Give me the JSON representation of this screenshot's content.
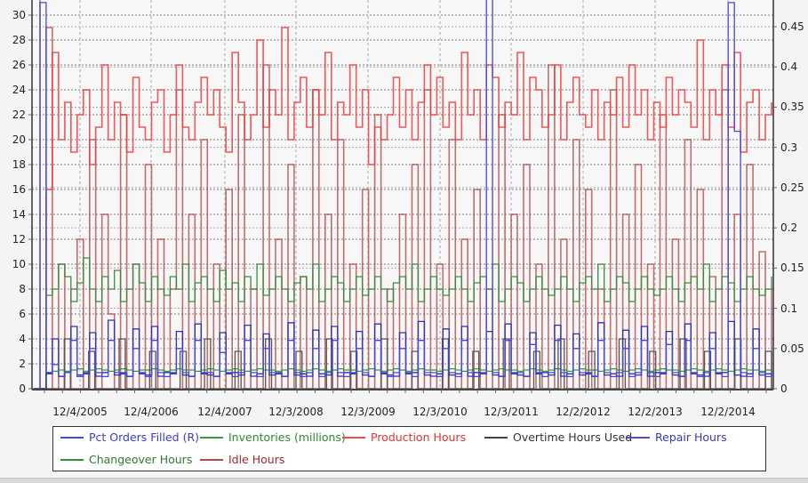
{
  "chart_data": {
    "type": "line",
    "title": "",
    "xlabel": "",
    "ylabel": "",
    "ylabel_right": "",
    "ylim": [
      0,
      31
    ],
    "ylim_right": [
      0,
      0.465
    ],
    "grid": true,
    "legend_position": "bottom",
    "left_axis_ticks": [
      "0",
      "2",
      "4",
      "6",
      "8",
      "10",
      "12",
      "14",
      "16",
      "18",
      "20",
      "22",
      "24",
      "26",
      "28",
      "30"
    ],
    "right_axis_ticks": [
      "0",
      "0.05",
      "0.1",
      "0.15",
      "0.2",
      "0.25",
      "0.3",
      "0.35",
      "0.4",
      "0.45"
    ],
    "x_tick_labels": [
      "12/4/2005",
      "12/4/2006",
      "12/4/2007",
      "12/3/2008",
      "12/3/2009",
      "12/3/2010",
      "12/3/2011",
      "12/2/2012",
      "12/2/2013",
      "12/2/2014"
    ],
    "x_range": [
      "~12/2004",
      "~7/2015"
    ],
    "series": [
      {
        "name": "Pct Orders Filled (R)",
        "axis": "right",
        "color": "#4848d8",
        "values": [
          0.0,
          0.48,
          0.02,
          0.03,
          0.015,
          0.02,
          0.06,
          0.015,
          0.02,
          0.05,
          0.02,
          0.015,
          0.06,
          0.02,
          0.02,
          0.015,
          0.05,
          0.02,
          0.015,
          0.06,
          0.02,
          0.015,
          0.02,
          0.05,
          0.02,
          0.015,
          0.06,
          0.02,
          0.02,
          0.015,
          0.045,
          0.02,
          0.015,
          0.02,
          0.06,
          0.02,
          0.015,
          0.05,
          0.02,
          0.02,
          0.015,
          0.06,
          0.02,
          0.015,
          0.02,
          0.05,
          0.015,
          0.02,
          0.06,
          0.02,
          0.015,
          0.02,
          0.05,
          0.02,
          0.015,
          0.06,
          0.02,
          0.015,
          0.02,
          0.05,
          0.02,
          0.015,
          0.06,
          0.02,
          0.02,
          0.015,
          0.05,
          0.02,
          0.015,
          0.06,
          0.02,
          0.015,
          0.02,
          0.5,
          0.02,
          0.015,
          0.06,
          0.02,
          0.02,
          0.015,
          0.055,
          0.02,
          0.015,
          0.02,
          0.06,
          0.02,
          0.015,
          0.05,
          0.02,
          0.02,
          0.015,
          0.06,
          0.02,
          0.015,
          0.02,
          0.05,
          0.015,
          0.02,
          0.06,
          0.02,
          0.015,
          0.02,
          0.055,
          0.02,
          0.015,
          0.06,
          0.02,
          0.015,
          0.02,
          0.05,
          0.02,
          0.015,
          0.48,
          0.32,
          0.02,
          0.015,
          0.05,
          0.02,
          0.015,
          0.02
        ]
      },
      {
        "name": "Inventories (millions)",
        "axis": "left",
        "color": "#3c9a3c",
        "values": [
          0,
          0,
          1.3,
          1.4,
          1.5,
          1.4,
          1.5,
          1.6,
          1.4,
          1.5,
          1.6,
          1.5,
          1.4,
          1.5,
          1.6,
          1.5,
          1.4,
          1.5,
          1.5,
          1.6,
          1.5,
          1.4,
          1.5,
          1.6,
          1.5,
          1.5,
          1.4,
          1.5,
          1.6,
          1.5,
          1.4,
          1.5,
          1.6,
          1.5,
          1.4,
          1.5,
          1.6,
          1.5,
          1.5,
          1.4,
          1.5,
          1.6,
          1.5,
          1.4,
          1.5,
          1.6,
          1.5,
          1.4,
          1.5,
          1.6,
          1.5,
          1.5,
          1.4,
          1.5,
          1.6,
          1.5,
          1.4,
          1.5,
          1.6,
          1.5,
          1.4,
          1.5,
          1.6,
          1.5,
          1.5,
          1.4,
          1.5,
          1.6,
          1.5,
          1.4,
          1.5,
          1.6,
          1.5,
          1.4,
          1.5,
          1.6,
          1.5,
          1.5,
          1.4,
          1.5,
          1.6,
          1.5,
          1.4,
          1.5,
          1.6,
          1.5,
          1.4,
          1.5,
          1.6,
          1.5,
          1.5,
          1.4,
          1.5,
          1.6,
          1.5,
          1.4,
          1.5,
          1.6,
          1.5,
          1.4,
          1.5,
          1.6,
          1.5,
          1.5,
          1.4,
          1.5,
          1.6,
          1.5,
          1.4,
          1.5,
          1.6,
          1.5,
          1.4,
          1.5,
          1.6,
          1.5,
          1.5,
          1.4,
          1.5,
          1.6
        ]
      },
      {
        "name": "Production Hours",
        "axis": "left",
        "color": "#f03c3c",
        "values": [
          0,
          0,
          16,
          27,
          20,
          23,
          19,
          22,
          24,
          18,
          21,
          26,
          20,
          23,
          22,
          19,
          25,
          21,
          20,
          23,
          24,
          19,
          22,
          26,
          21,
          20,
          23,
          25,
          22,
          24,
          21,
          19,
          27,
          23,
          20,
          22,
          28,
          21,
          24,
          22,
          29,
          20,
          23,
          25,
          21,
          24,
          22,
          27,
          20,
          23,
          22,
          26,
          21,
          24,
          18,
          21,
          20,
          22,
          25,
          21,
          24,
          20,
          23,
          26,
          22,
          25,
          21,
          23,
          20,
          27,
          22,
          24,
          20,
          26,
          25,
          21,
          23,
          22,
          27,
          20,
          25,
          24,
          21,
          22,
          26,
          20,
          23,
          25,
          22,
          21,
          24,
          20,
          23,
          22,
          25,
          21,
          26,
          22,
          24,
          20,
          23,
          21,
          25,
          22,
          24,
          23,
          21,
          28,
          20,
          24,
          22,
          26,
          21,
          27,
          19,
          23,
          24,
          20,
          22,
          23
        ]
      },
      {
        "name": "Overtime Hours Used",
        "axis": "left",
        "color": "#555555",
        "values": [
          0,
          0,
          0,
          0,
          0,
          4,
          0,
          0,
          0,
          3,
          0,
          0,
          0,
          0,
          4,
          0,
          0,
          0,
          0,
          3,
          0,
          0,
          0,
          0,
          3,
          0,
          0,
          0,
          4,
          0,
          0,
          0,
          0,
          3,
          0,
          0,
          0,
          0,
          4,
          0,
          0,
          0,
          0,
          3,
          0,
          0,
          0,
          0,
          4,
          0,
          0,
          0,
          3,
          0,
          0,
          0,
          0,
          4,
          0,
          0,
          0,
          0,
          3,
          0,
          0,
          0,
          0,
          4,
          0,
          0,
          0,
          0,
          3,
          0,
          0,
          0,
          0,
          4,
          0,
          0,
          0,
          0,
          3,
          0,
          0,
          0,
          4,
          0,
          0,
          0,
          0,
          3,
          0,
          0,
          0,
          0,
          4,
          0,
          0,
          0,
          0,
          3,
          0,
          0,
          0,
          0,
          4,
          0,
          0,
          0,
          3,
          0,
          0,
          0,
          0,
          4,
          0,
          0,
          0,
          0,
          3,
          0
        ]
      },
      {
        "name": "Repair Hours",
        "axis": "left",
        "color": "#3030b0",
        "values": [
          0,
          0,
          1.2,
          4,
          1.0,
          1.3,
          5,
          1.1,
          1.2,
          4.5,
          1.0,
          1.3,
          5.5,
          1.1,
          1.2,
          1.0,
          4.8,
          1.2,
          1.1,
          5,
          1.0,
          1.3,
          1.2,
          4.6,
          1.1,
          1.0,
          5.2,
          1.2,
          1.1,
          1.0,
          4.5,
          1.2,
          1.3,
          1.1,
          5.1,
          1.0,
          1.2,
          4.4,
          1.1,
          1.2,
          1.0,
          5.3,
          1.1,
          1.2,
          1.0,
          4.7,
          1.2,
          1.1,
          5,
          1.0,
          1.3,
          1.2,
          4.6,
          1.1,
          1.0,
          5.2,
          1.2,
          1.1,
          1.0,
          4.5,
          1.2,
          1.3,
          5.4,
          1.1,
          1.0,
          1.2,
          4.8,
          1.1,
          1.2,
          5,
          1.0,
          1.3,
          1.2,
          4.6,
          1.1,
          1.0,
          5.2,
          1.2,
          1.1,
          1.0,
          4.5,
          1.2,
          1.3,
          1.1,
          5.1,
          1.0,
          1.2,
          4.4,
          1.1,
          1.2,
          1.0,
          5.3,
          1.1,
          1.2,
          1.0,
          4.7,
          1.2,
          1.1,
          5,
          1.0,
          1.3,
          1.2,
          4.6,
          1.1,
          1.0,
          5.2,
          1.2,
          1.1,
          1.0,
          4.5,
          1.2,
          1.3,
          5.4,
          1.1,
          1.0,
          1.2,
          4.8,
          1.1,
          1.2,
          1.0
        ]
      },
      {
        "name": "Changeover Hours",
        "axis": "left",
        "color": "#3c8c3c",
        "values": [
          0,
          0,
          7.5,
          8,
          10,
          9,
          7,
          8.5,
          10.5,
          8,
          7,
          9,
          8,
          9.5,
          7,
          8,
          10,
          8.5,
          7,
          9,
          8,
          7.5,
          9,
          8,
          10,
          7,
          8.5,
          9,
          8,
          7,
          9.5,
          8,
          8.5,
          7,
          9,
          8,
          10,
          7.5,
          8,
          9,
          8,
          7,
          8.5,
          9,
          8,
          10,
          7,
          8,
          9,
          8.5,
          7,
          8,
          9,
          7.5,
          8,
          9,
          8,
          7,
          8.5,
          9,
          8,
          10,
          7,
          8,
          9,
          8,
          7.5,
          8,
          9,
          8,
          7,
          8.5,
          9,
          8,
          10,
          7,
          8,
          9,
          8.5,
          7,
          8,
          9,
          8,
          7.5,
          8,
          9,
          8,
          7,
          8.5,
          9,
          8,
          10,
          7,
          8,
          9,
          8.5,
          7,
          8,
          9,
          8,
          7.5,
          8,
          9,
          8,
          7,
          8.5,
          9,
          8,
          10,
          7,
          8,
          9,
          8.5,
          7,
          8,
          9,
          8,
          7.5,
          8,
          9
        ]
      },
      {
        "name": "Idle Hours",
        "axis": "left",
        "color": "#b04040",
        "values": [
          32,
          0,
          29,
          0,
          10,
          0,
          8,
          12,
          0,
          20,
          0,
          14,
          6,
          0,
          22,
          0,
          10,
          0,
          18,
          0,
          12,
          0,
          8,
          24,
          0,
          14,
          0,
          20,
          0,
          10,
          0,
          16,
          0,
          22,
          0,
          8,
          0,
          26,
          0,
          12,
          0,
          18,
          0,
          9,
          0,
          24,
          0,
          14,
          0,
          20,
          0,
          10,
          0,
          16,
          0,
          22,
          0,
          8,
          0,
          14,
          0,
          18,
          0,
          24,
          0,
          10,
          0,
          20,
          0,
          12,
          0,
          16,
          0,
          8,
          0,
          22,
          0,
          14,
          0,
          18,
          0,
          10,
          0,
          26,
          0,
          12,
          0,
          20,
          0,
          16,
          0,
          8,
          0,
          24,
          0,
          14,
          0,
          18,
          0,
          10,
          0,
          22,
          0,
          12,
          0,
          20,
          0,
          16,
          0,
          9,
          0,
          24,
          0,
          14,
          0,
          18,
          0,
          11,
          0,
          8
        ]
      }
    ]
  },
  "legend": {
    "items": [
      {
        "label": "Pct Orders Filled (R)",
        "color": "#4848e0",
        "text_color": "#3a3ad0"
      },
      {
        "label": "Inventories (millions)",
        "color": "#3c9a3c",
        "text_color": "#2e8a2e"
      },
      {
        "label": "Production Hours",
        "color": "#f04a4a",
        "text_color": "#e83030"
      },
      {
        "label": "Overtime Hours Used",
        "color": "#444444",
        "text_color": "#333333"
      },
      {
        "label": "Repair Hours",
        "color": "#5050c0",
        "text_color": "#3a3ab0"
      },
      {
        "label": "Changeover Hours",
        "color": "#3c8c3c",
        "text_color": "#2e7a2e"
      },
      {
        "label": "Idle Hours",
        "color": "#b04848",
        "text_color": "#a02828"
      }
    ]
  }
}
